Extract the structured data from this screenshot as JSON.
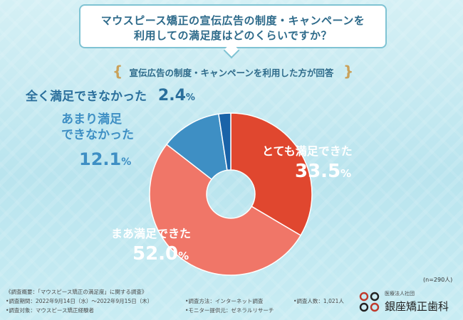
{
  "question": {
    "line1": "マウスピース矯正の宣伝広告の制度・キャンペーンを",
    "line2": "利用しての満足度はどのくらいですか？"
  },
  "subtitle": "宣伝広告の制度・キャンペーンを利用した方が回答",
  "chart_data": {
    "type": "pie",
    "donut": true,
    "slices": [
      {
        "label": "とても満足できた",
        "value": 33.5,
        "color": "#e0472f"
      },
      {
        "label": "まあ満足できた",
        "value": 52.0,
        "color": "#f07668"
      },
      {
        "label": "あまり満足\nできなかった",
        "value": 12.1,
        "color": "#3e8fc4"
      },
      {
        "label": "全く満足できなかった",
        "value": 2.4,
        "color": "#1a63a8"
      }
    ],
    "n": "(n=290人)"
  },
  "labels": {
    "very_satisfied": "とても満足できた",
    "very_satisfied_pct": "33.5",
    "somewhat_satisfied": "まあ満足できた",
    "somewhat_satisfied_pct": "52.0",
    "not_very_1": "あまり満足",
    "not_very_2": "できなかった",
    "not_very_pct": "12.1",
    "not_at_all": "全く満足できなかった",
    "not_at_all_pct": "2.4",
    "percent_sign": "%"
  },
  "footer": {
    "overview": "《調査概要：「マウスピース矯正の満足度」に関する調査》",
    "period": "•調査期間：2022年9月14日（水）〜2022年9月15日（木）",
    "target": "•調査対象：マウスピース矯正経験者",
    "method": "•調査方法：インターネット調査",
    "provider": "•モニター提供元：ゼネラルリサーチ",
    "count": "•調査人数：1,021人",
    "org_type": "医療法人社団",
    "org_name": "銀座矯正歯科"
  },
  "colors": {
    "red": "#e0472f",
    "salmon": "#f07668",
    "blue": "#3e8fc4",
    "navy": "#1a63a8",
    "question_text": "#2d6a8a"
  }
}
